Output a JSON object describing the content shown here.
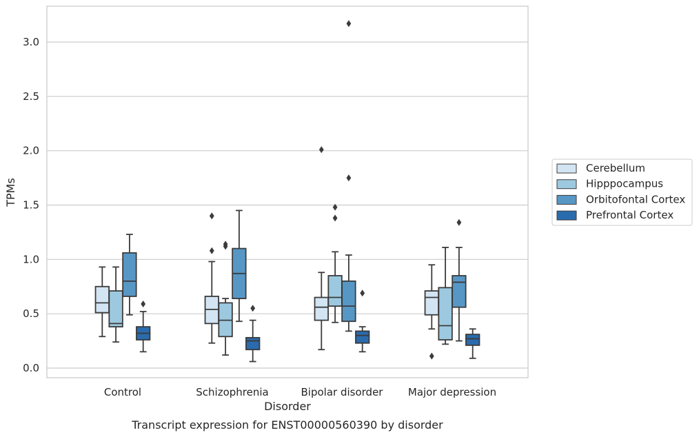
{
  "caption": "Transcript expression for ENST00000560390 by disorder",
  "chart_data": {
    "type": "box",
    "xlabel": "Disorder",
    "ylabel": "TPMs",
    "ylim": [
      -0.08,
      3.33
    ],
    "yticks": [
      0.0,
      0.5,
      1.0,
      1.5,
      2.0,
      2.5,
      3.0
    ],
    "ytick_labels": [
      "0.0",
      "0.5",
      "1.0",
      "1.5",
      "2.0",
      "2.5",
      "3.0"
    ],
    "grid": "horizontal",
    "legend_position": "right",
    "categories": [
      "Control",
      "Schizophrenia",
      "Bipolar disorder",
      "Major depression"
    ],
    "series": [
      {
        "name": "Cerebellum",
        "color": "#d3e4f3",
        "boxes": [
          {
            "whislo": 0.29,
            "q1": 0.51,
            "med": 0.6,
            "q3": 0.75,
            "whishi": 0.93,
            "fliers": []
          },
          {
            "whislo": 0.23,
            "q1": 0.41,
            "med": 0.54,
            "q3": 0.66,
            "whishi": 0.98,
            "fliers": [
              1.08,
              1.4
            ]
          },
          {
            "whislo": 0.17,
            "q1": 0.44,
            "med": 0.56,
            "q3": 0.65,
            "whishi": 0.88,
            "fliers": [
              2.01
            ]
          },
          {
            "whislo": 0.36,
            "q1": 0.49,
            "med": 0.65,
            "q3": 0.71,
            "whishi": 0.95,
            "fliers": [
              0.11
            ]
          }
        ]
      },
      {
        "name": "Hipppocampus",
        "color": "#9dc9e0",
        "boxes": [
          {
            "whislo": 0.24,
            "q1": 0.38,
            "med": 0.41,
            "q3": 0.71,
            "whishi": 0.93,
            "fliers": []
          },
          {
            "whislo": 0.12,
            "q1": 0.29,
            "med": 0.44,
            "q3": 0.6,
            "whishi": 0.64,
            "fliers": [
              1.12,
              1.14
            ]
          },
          {
            "whislo": 0.42,
            "q1": 0.57,
            "med": 0.65,
            "q3": 0.85,
            "whishi": 1.07,
            "fliers": [
              1.38,
              1.48
            ]
          },
          {
            "whislo": 0.22,
            "q1": 0.26,
            "med": 0.39,
            "q3": 0.74,
            "whishi": 1.11,
            "fliers": []
          }
        ]
      },
      {
        "name": "Orbitofontal Cortex",
        "color": "#5797c6",
        "boxes": [
          {
            "whislo": 0.49,
            "q1": 0.66,
            "med": 0.8,
            "q3": 1.06,
            "whishi": 1.23,
            "fliers": []
          },
          {
            "whislo": 0.43,
            "q1": 0.64,
            "med": 0.87,
            "q3": 1.1,
            "whishi": 1.45,
            "fliers": []
          },
          {
            "whislo": 0.34,
            "q1": 0.43,
            "med": 0.57,
            "q3": 0.8,
            "whishi": 1.04,
            "fliers": [
              1.75,
              3.17
            ]
          },
          {
            "whislo": 0.25,
            "q1": 0.56,
            "med": 0.79,
            "q3": 0.85,
            "whishi": 1.11,
            "fliers": [
              1.34
            ]
          }
        ]
      },
      {
        "name": "Prefrontal Cortex",
        "color": "#2a6bad",
        "boxes": [
          {
            "whislo": 0.15,
            "q1": 0.26,
            "med": 0.32,
            "q3": 0.38,
            "whishi": 0.52,
            "fliers": [
              0.59
            ]
          },
          {
            "whislo": 0.06,
            "q1": 0.17,
            "med": 0.25,
            "q3": 0.28,
            "whishi": 0.44,
            "fliers": [
              0.55
            ]
          },
          {
            "whislo": 0.15,
            "q1": 0.23,
            "med": 0.3,
            "q3": 0.34,
            "whishi": 0.38,
            "fliers": [
              0.69
            ]
          },
          {
            "whislo": 0.09,
            "q1": 0.21,
            "med": 0.27,
            "q3": 0.31,
            "whishi": 0.36,
            "fliers": []
          }
        ]
      }
    ]
  }
}
